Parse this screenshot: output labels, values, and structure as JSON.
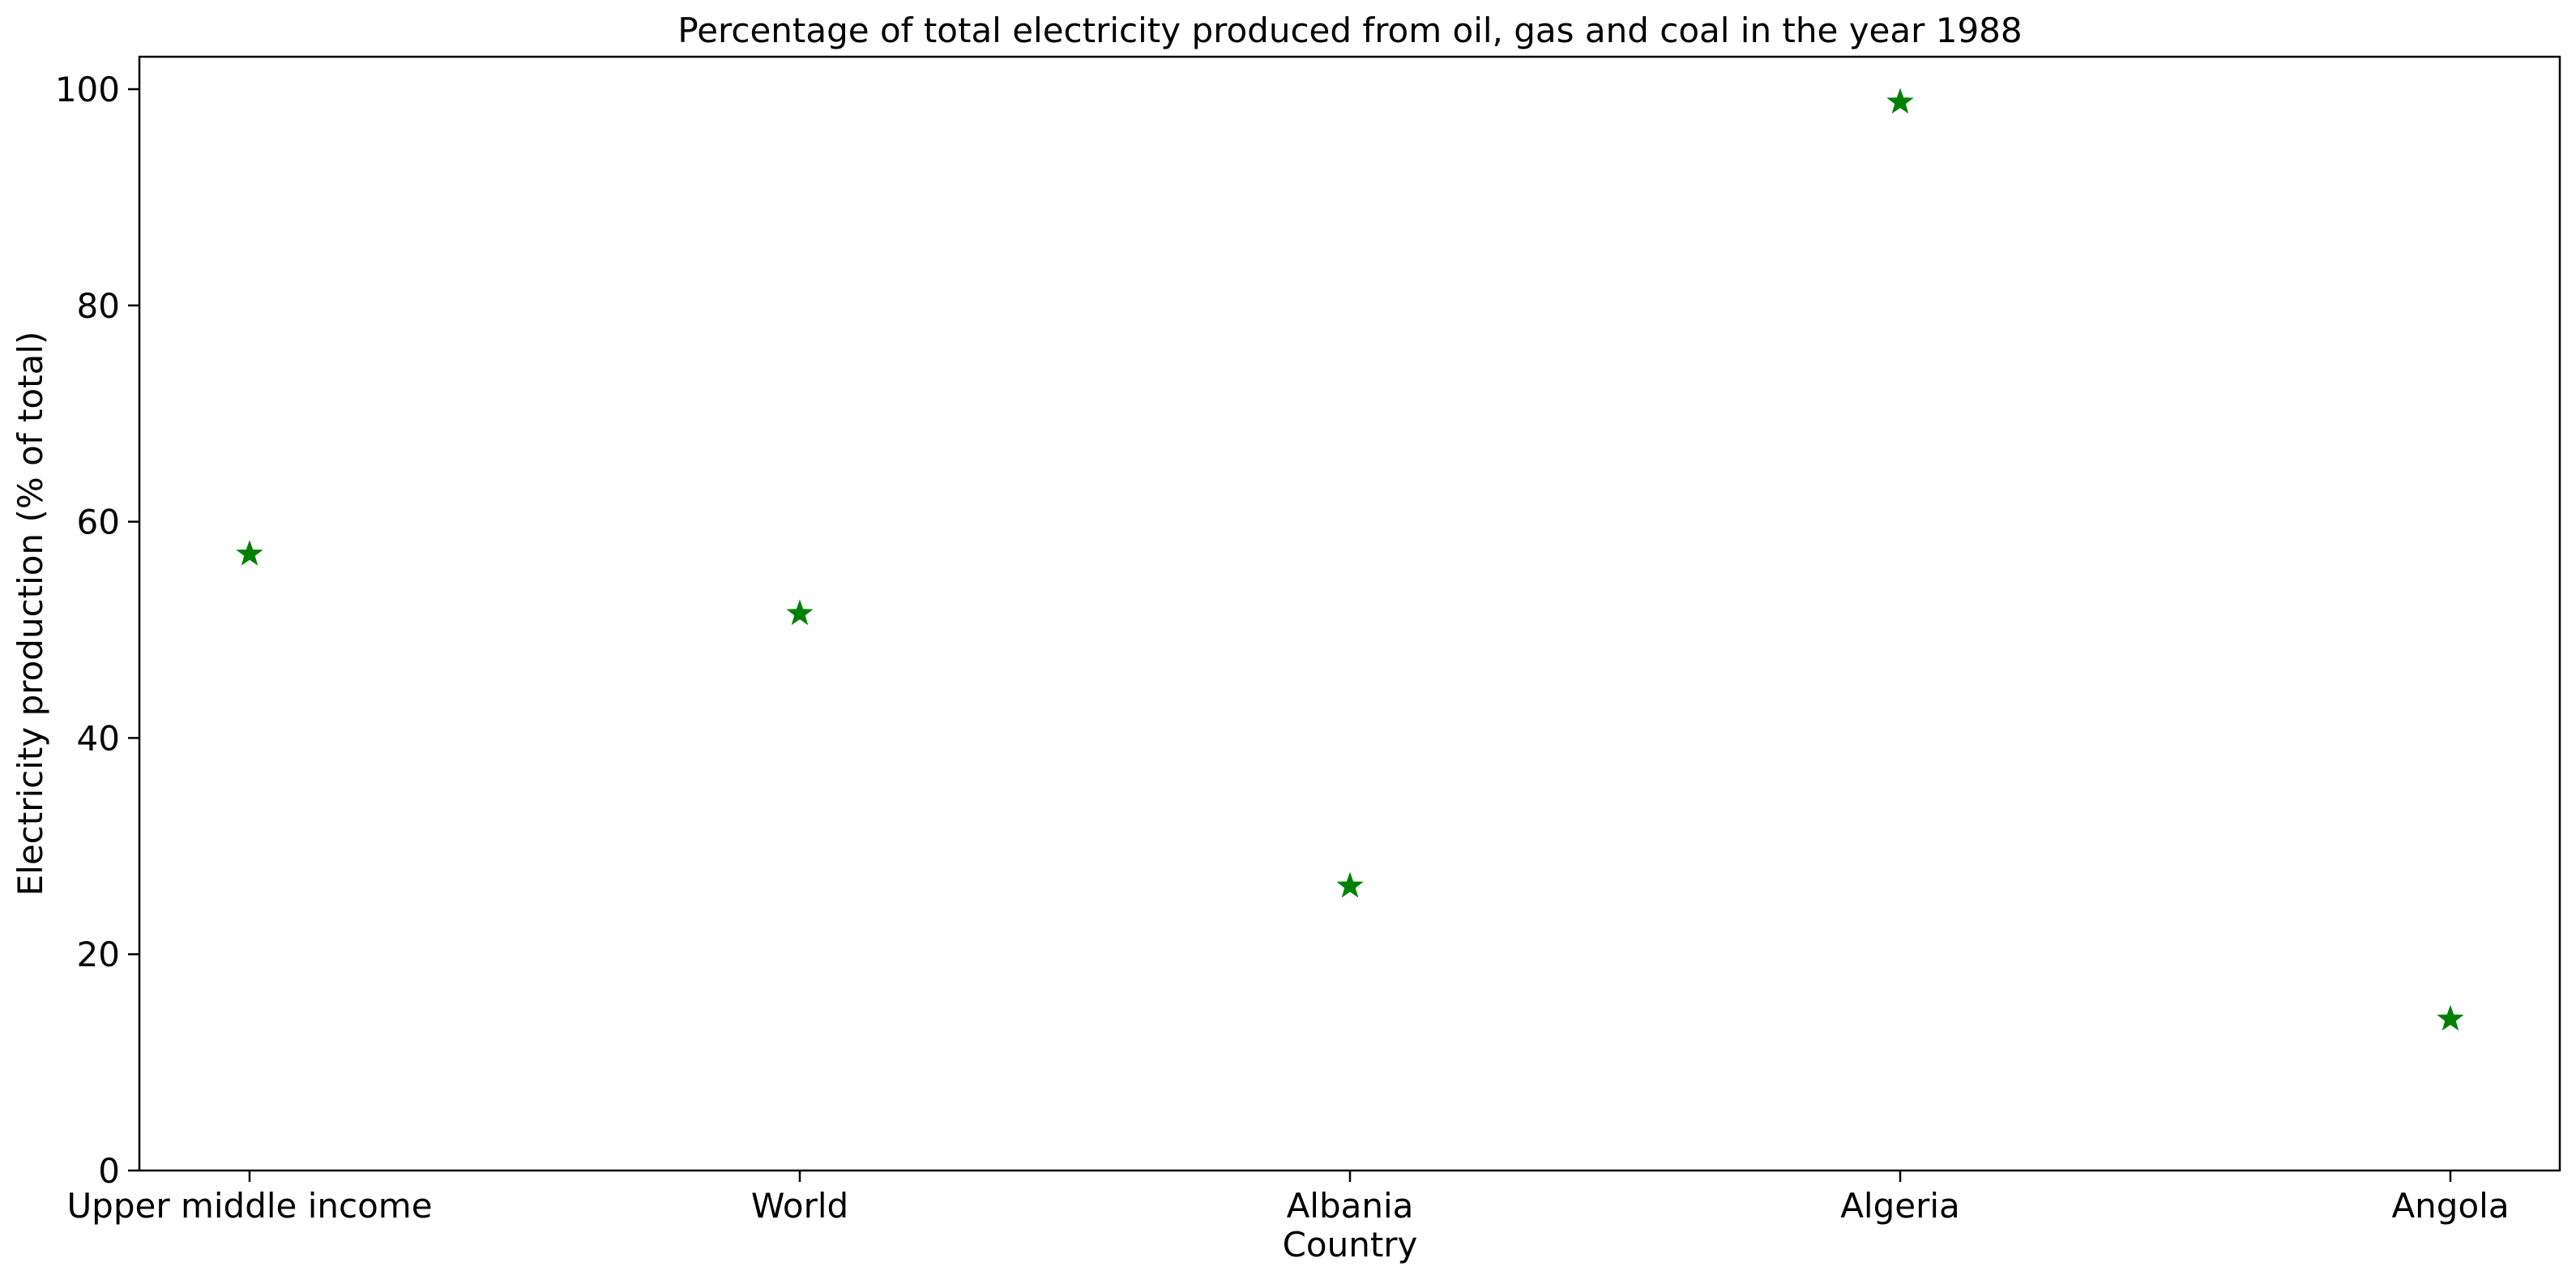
{
  "chart_data": {
    "type": "scatter",
    "title": "Percentage of total electricity produced from oil, gas and coal in the year 1988",
    "xlabel": "Country",
    "ylabel": "Electricity production (% of total)",
    "categories": [
      "Upper middle income",
      "World",
      "Albania",
      "Algeria",
      "Angola"
    ],
    "values": [
      57.0,
      51.5,
      26.3,
      98.8,
      14.0
    ],
    "ylim": [
      0,
      103
    ],
    "yticks": [
      0,
      20,
      40,
      60,
      80,
      100
    ],
    "marker": "star",
    "marker_color": "#008000",
    "grid": false,
    "legend": "none"
  }
}
